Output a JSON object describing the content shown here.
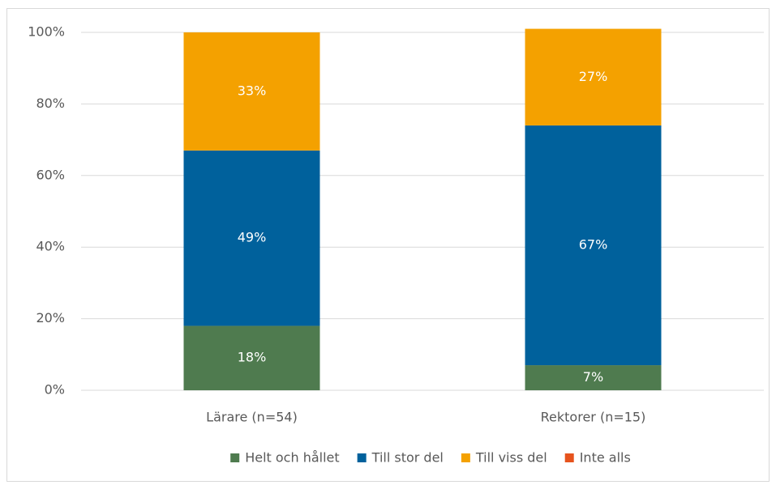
{
  "chart_data": {
    "type": "stacked_bar",
    "categories": [
      "Lärare (n=54)",
      "Rektorer (n=15)"
    ],
    "series": [
      {
        "name": "Helt och hållet",
        "color": "#4f7b4f",
        "values": [
          18,
          7
        ],
        "value_labels": [
          "18%",
          "7%"
        ]
      },
      {
        "name": "Till stor del",
        "color": "#00619c",
        "values": [
          49,
          67
        ],
        "value_labels": [
          "49%",
          "67%"
        ]
      },
      {
        "name": "Till viss del",
        "color": "#f4a100",
        "values": [
          33,
          27
        ],
        "value_labels": [
          "33%",
          "27%"
        ]
      },
      {
        "name": "Inte alls",
        "color": "#e6531d",
        "values": [
          0,
          0
        ],
        "value_labels": [
          null,
          null
        ]
      }
    ],
    "ylim": [
      0,
      100
    ],
    "yticks": [
      {
        "value": 0,
        "label": "0%"
      },
      {
        "value": 20,
        "label": "20%"
      },
      {
        "value": 40,
        "label": "40%"
      },
      {
        "value": 60,
        "label": "60%"
      },
      {
        "value": 80,
        "label": "80%"
      },
      {
        "value": 100,
        "label": "100%"
      }
    ],
    "grid": true,
    "legend": "bottom"
  }
}
